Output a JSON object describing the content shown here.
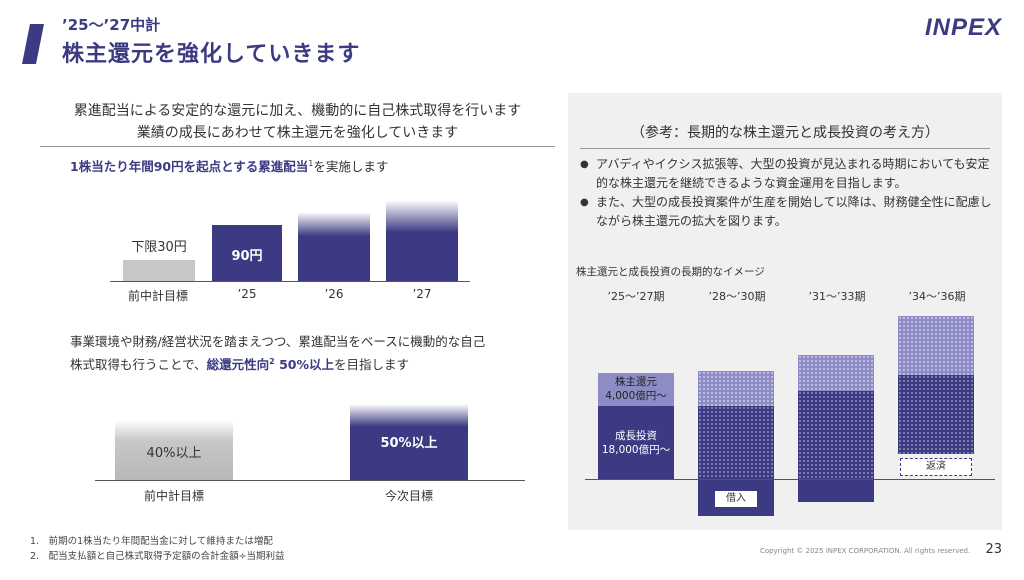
{
  "header": {
    "subtitle": "’25～’27中計",
    "title": "株主還元を強化していきます",
    "logo_text": "INPEX"
  },
  "left": {
    "lead_lines": [
      "累進配当による安定的な還元に加え、機動的に自己株式取得を行います",
      "業績の成長にあわせて株主還元を強化していきます"
    ],
    "dividend": {
      "highlight": "1株当たり年間90円を起点とする累進配当",
      "sup": "1",
      "suffix": "を実施します",
      "floor_label": "下限30円",
      "bar_value_label": "90円",
      "categories": [
        "前中計目標",
        "’25",
        "’26",
        "’27"
      ]
    },
    "payout": {
      "text_line1": "事業環境や財務/経営状況を踏まえつつ、累進配当をベースに機動的な自己",
      "text_line2_prefix": "株式取得も行うことで、",
      "text_line2_highlight": "総還元性向",
      "text_line2_sup": "2",
      "text_line2_highlight2": " 50%以上",
      "text_line2_suffix": "を目指します",
      "prev_label": "40%以上",
      "new_label": "50%以上",
      "categories": [
        "前中計目標",
        "今次目標"
      ]
    }
  },
  "right": {
    "panel_title": "（参考：長期的な株主還元と成長投資の考え方）",
    "bullets": [
      "アバディやイクシス拡張等、大型の投資が見込まれる時期においても安定的な株主還元を継続できるような資金運用を目指します。",
      "また、大型の成長投資案件が生産を開始して以降は、財務健全性に配慮しながら株主還元の拡大を図ります。"
    ],
    "image_caption": "株主還元と成長投資の長期的なイメージ",
    "periods": [
      "’25～’27期",
      "’28～’30期",
      "’31～’33期",
      "’34～’36期"
    ],
    "shareholder_return_label": "株主還元",
    "shareholder_return_amount": "4,000億円～",
    "growth_investment_label": "成長投資",
    "growth_investment_amount": "18,000億円～",
    "borrowing_label": "借入",
    "repayment_label": "返済"
  },
  "footer": {
    "footnotes": [
      "1.　前期の1株当たり年間配当金に対して維持または増配",
      "2.　配当支払額と自己株式取得予定額の合計金額÷当期利益"
    ],
    "copyright": "Copyright © 2025 INPEX CORPORATION. All rights reserved.",
    "page_number": "23"
  },
  "colors": {
    "brand": "#3b3a82",
    "brand_light": "#8e8cc6",
    "grey_bar": "#c7c7c9",
    "panel_bg": "#f0f0f0"
  },
  "chart_data": [
    {
      "type": "bar",
      "categories": [
        "前中計目標",
        "’25",
        "’26",
        "’27"
      ],
      "series": [
        {
          "values": [
            30,
            90,
            null,
            null
          ]
        }
      ],
      "annotations": [
        "下限30円",
        "90円"
      ]
    },
    {
      "type": "bar",
      "categories": [
        "前中計目標",
        "今次目標"
      ],
      "series": [
        {
          "values": [
            40,
            50
          ]
        }
      ],
      "annotations": [
        "40%以上",
        "50%以上"
      ]
    }
  ]
}
